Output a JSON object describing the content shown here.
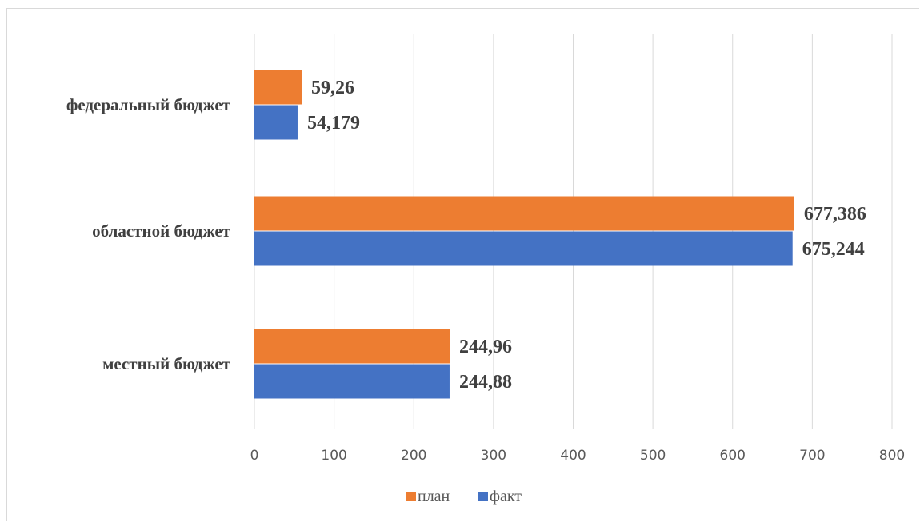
{
  "chart_data": {
    "type": "bar",
    "orientation": "horizontal",
    "categories": [
      "федеральный бюджет",
      "областной бюджет",
      "местный бюджет"
    ],
    "series": [
      {
        "name": "план",
        "values": [
          59.26,
          677.386,
          244.96
        ],
        "labels": [
          "59,26",
          "677,386",
          "244,96"
        ],
        "color": "#ED7D31"
      },
      {
        "name": "факт",
        "values": [
          54.179,
          675.244,
          244.88
        ],
        "labels": [
          "54,179",
          "675,244",
          "244,88"
        ],
        "color": "#4472C4"
      }
    ],
    "xlim": [
      0,
      800
    ],
    "xticks": [
      0,
      100,
      200,
      300,
      400,
      500,
      600,
      700,
      800
    ],
    "xtick_labels": [
      "0",
      "100",
      "200",
      "300",
      "400",
      "500",
      "600",
      "700",
      "800"
    ],
    "grid": true,
    "legend_position": "bottom"
  }
}
